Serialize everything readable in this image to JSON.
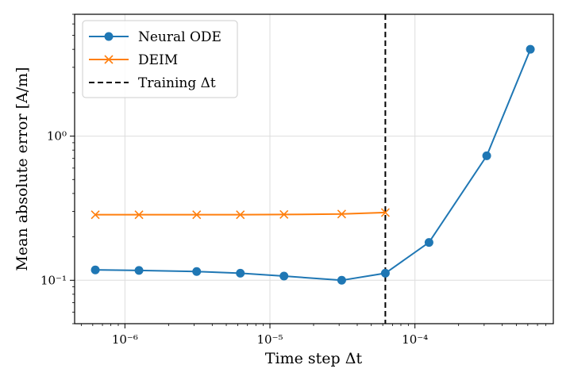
{
  "chart_data": {
    "type": "line",
    "xscale": "log",
    "yscale": "log",
    "xlabel": "Time step Δt",
    "ylabel": "Mean absolute error [A/m]",
    "xlim": [
      4.5e-07,
      0.0009
    ],
    "ylim": [
      0.05,
      7
    ],
    "x_major_ticks": [
      1e-06,
      1e-05,
      0.0001
    ],
    "x_tick_labels": [
      "10⁻⁶",
      "10⁻⁵",
      "10⁻⁴"
    ],
    "y_major_ticks": [
      0.1,
      1
    ],
    "y_tick_labels": [
      "10⁻¹",
      "10⁰"
    ],
    "grid": true,
    "legend_position": "top-left",
    "series": [
      {
        "name": "Neural ODE",
        "color": "#1f77b4",
        "marker": "circle",
        "x": [
          6.25e-07,
          1.25e-06,
          3.125e-06,
          6.25e-06,
          1.25e-05,
          3.125e-05,
          6.25e-05,
          0.000125,
          0.0003125,
          0.000625
        ],
        "y": [
          0.118,
          0.117,
          0.115,
          0.112,
          0.107,
          0.1,
          0.112,
          0.183,
          0.73,
          4.0
        ]
      },
      {
        "name": "DEIM",
        "color": "#ff7f0e",
        "marker": "x",
        "x": [
          6.25e-07,
          1.25e-06,
          3.125e-06,
          6.25e-06,
          1.25e-05,
          3.125e-05,
          6.25e-05
        ],
        "y": [
          0.285,
          0.285,
          0.285,
          0.285,
          0.286,
          0.288,
          0.295
        ]
      }
    ],
    "vlines": [
      {
        "name": "Training Δt",
        "x": 6.25e-05,
        "color": "#000000",
        "style": "dashed"
      }
    ]
  }
}
